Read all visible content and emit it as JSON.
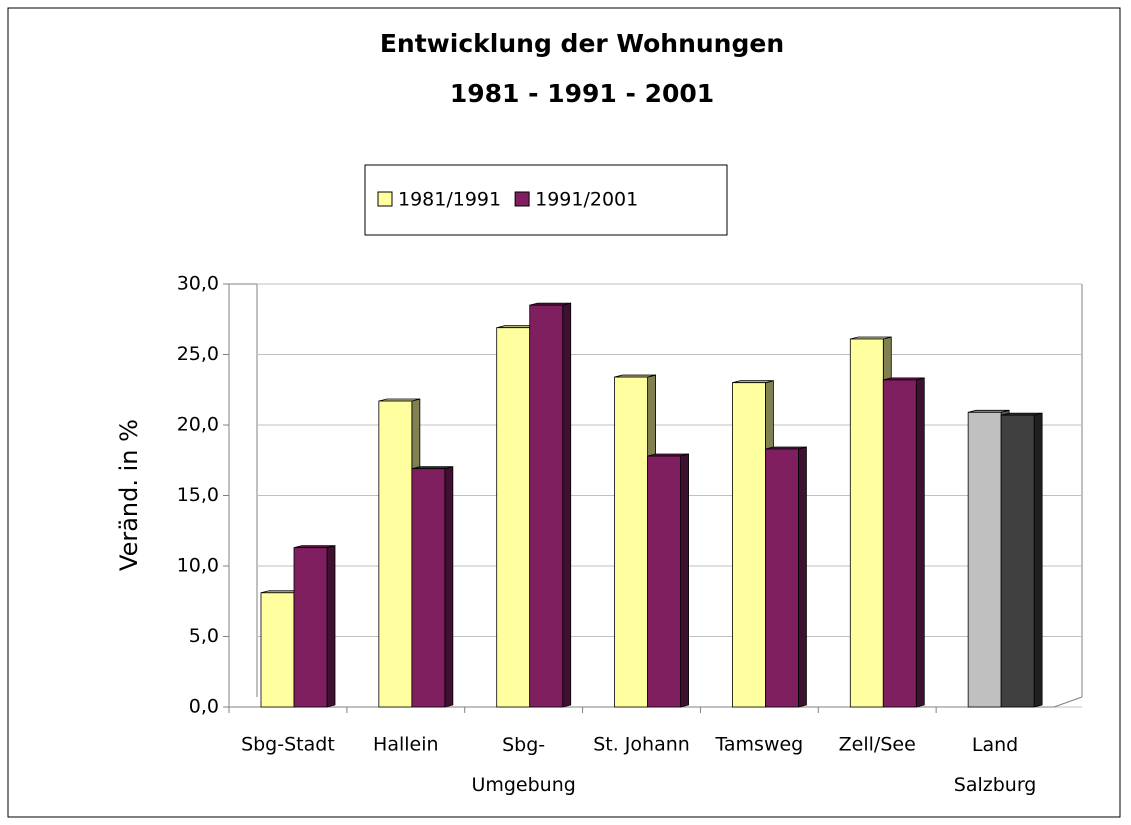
{
  "chart_data": {
    "type": "bar3d",
    "title": "Entwicklung der Wohnungen",
    "subtitle": "1981 - 1991 - 2001",
    "y_label": "Veränd. in %",
    "categories": [
      "Sbg-Stadt",
      "Hallein",
      "Sbg-\nUmgebung",
      "St. Johann",
      "Tamsweg",
      "Zell/See",
      "Land\nSalzburg"
    ],
    "series": [
      {
        "name": "1981/1991",
        "color": "#ffffa0",
        "colors": [
          "#ffffa0",
          "#ffffa0",
          "#ffffa0",
          "#ffffa0",
          "#ffffa0",
          "#ffffa0",
          "#c0c0c0"
        ],
        "values": [
          8.1,
          21.7,
          26.9,
          23.4,
          23.0,
          26.1,
          20.9
        ]
      },
      {
        "name": "1991/2001",
        "color": "#801f60",
        "colors": [
          "#801f60",
          "#801f60",
          "#801f60",
          "#801f60",
          "#801f60",
          "#801f60",
          "#404040"
        ],
        "values": [
          11.3,
          16.9,
          28.5,
          17.8,
          18.3,
          23.2,
          20.7
        ]
      }
    ],
    "ylim": [
      0,
      30
    ],
    "yticks": [
      {
        "value": 0,
        "label": "0,0"
      },
      {
        "value": 5,
        "label": "5,0"
      },
      {
        "value": 10,
        "label": "10,0"
      },
      {
        "value": 15,
        "label": "15,0"
      },
      {
        "value": 20,
        "label": "20,0"
      },
      {
        "value": 25,
        "label": "25,0"
      },
      {
        "value": 30,
        "label": "30,0"
      }
    ],
    "grid": true,
    "legend": "top"
  }
}
